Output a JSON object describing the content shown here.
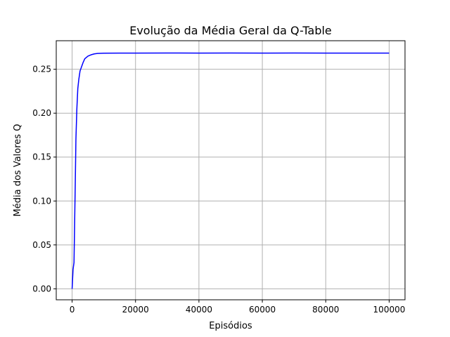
{
  "chart_data": {
    "type": "line",
    "title": "Evolução da Média Geral da Q-Table",
    "xlabel": "Episódios",
    "ylabel": "Média dos Valores Q",
    "xlim": [
      -5000,
      105000
    ],
    "ylim": [
      -0.0125,
      0.2825
    ],
    "xticks": [
      0,
      20000,
      40000,
      60000,
      80000,
      100000
    ],
    "xtick_labels": [
      "0",
      "20000",
      "40000",
      "60000",
      "80000",
      "100000"
    ],
    "yticks": [
      0.0,
      0.05,
      0.1,
      0.15,
      0.2,
      0.25
    ],
    "ytick_labels": [
      "0.00",
      "0.05",
      "0.10",
      "0.15",
      "0.20",
      "0.25"
    ],
    "grid": true,
    "series": [
      {
        "color": "#0000ff",
        "x": [
          0,
          300,
          600,
          800,
          1000,
          1200,
          1500,
          1800,
          2100,
          2500,
          3000,
          3500,
          4000,
          5000,
          6000,
          7000,
          8000,
          10000,
          15000,
          20000,
          30000,
          40000,
          50000,
          60000,
          70000,
          80000,
          90000,
          100000
        ],
        "y": [
          0.0,
          0.022,
          0.03,
          0.075,
          0.12,
          0.17,
          0.205,
          0.228,
          0.238,
          0.248,
          0.253,
          0.258,
          0.262,
          0.265,
          0.2665,
          0.2675,
          0.268,
          0.2683,
          0.2684,
          0.2684,
          0.2685,
          0.2684,
          0.2685,
          0.2684,
          0.2685,
          0.2684,
          0.2684,
          0.2684
        ]
      }
    ]
  }
}
